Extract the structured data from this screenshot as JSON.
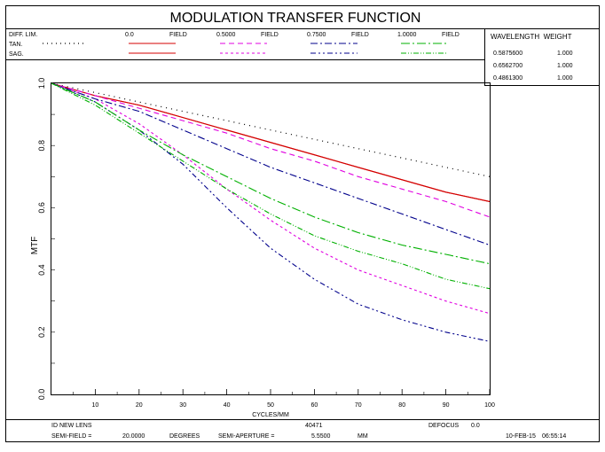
{
  "chart_data": {
    "type": "line",
    "title": "MODULATION TRANSFER FUNCTION",
    "xlabel": "CYCLES/MM",
    "ylabel": "MTF",
    "xlim": [
      0,
      100
    ],
    "ylim": [
      0,
      1.0
    ],
    "xticks": [
      10,
      20,
      30,
      40,
      50,
      60,
      70,
      80,
      90,
      100
    ],
    "yticks": [
      "0.0",
      "0.2",
      "0.4",
      "0.6",
      "0.8",
      "1.0"
    ],
    "x": [
      0,
      10,
      20,
      30,
      40,
      50,
      60,
      70,
      80,
      90,
      100
    ],
    "diff_lim": {
      "label": "DIFF. LIM.",
      "values": [
        1.0,
        0.97,
        0.94,
        0.91,
        0.88,
        0.85,
        0.82,
        0.79,
        0.76,
        0.73,
        0.7
      ]
    },
    "row_labels": [
      "TAN.",
      "SAG."
    ],
    "fields": [
      {
        "value": "0.0",
        "word": "FIELD",
        "color": "#d40000",
        "tan": [
          1.0,
          0.96,
          0.93,
          0.89,
          0.85,
          0.81,
          0.77,
          0.73,
          0.69,
          0.65,
          0.62
        ],
        "sag": [
          1.0,
          0.96,
          0.93,
          0.89,
          0.85,
          0.81,
          0.77,
          0.73,
          0.69,
          0.65,
          0.62
        ]
      },
      {
        "value": "0.5000",
        "word": "FIELD",
        "color": "#e000e0",
        "tan": [
          1.0,
          0.96,
          0.92,
          0.88,
          0.84,
          0.79,
          0.75,
          0.7,
          0.66,
          0.62,
          0.57
        ],
        "sag": [
          1.0,
          0.95,
          0.87,
          0.77,
          0.66,
          0.56,
          0.47,
          0.4,
          0.35,
          0.3,
          0.26
        ]
      },
      {
        "value": "0.7500",
        "word": "FIELD",
        "color": "#00008b",
        "tan": [
          1.0,
          0.95,
          0.91,
          0.85,
          0.79,
          0.73,
          0.68,
          0.63,
          0.58,
          0.53,
          0.48
        ],
        "sag": [
          1.0,
          0.94,
          0.85,
          0.74,
          0.6,
          0.47,
          0.37,
          0.29,
          0.24,
          0.2,
          0.17
        ]
      },
      {
        "value": "1.0000",
        "word": "FIELD",
        "color": "#00b000",
        "tan": [
          1.0,
          0.94,
          0.85,
          0.77,
          0.7,
          0.63,
          0.57,
          0.52,
          0.48,
          0.45,
          0.42
        ],
        "sag": [
          1.0,
          0.93,
          0.84,
          0.75,
          0.66,
          0.58,
          0.51,
          0.46,
          0.42,
          0.37,
          0.34
        ]
      }
    ],
    "wavelengths": {
      "header": "WAVELENGTH  WEIGHT",
      "rows": [
        {
          "wavelength": "0.5875600",
          "weight": "1.000"
        },
        {
          "wavelength": "0.6562700",
          "weight": "1.000"
        },
        {
          "wavelength": "0.4861300",
          "weight": "1.000"
        }
      ]
    },
    "grid": true
  },
  "footer": {
    "lens_name": "ID NEW LENS",
    "code": "40471",
    "defocus_label": "DEFOCUS",
    "defocus_value": "0.0",
    "semi_field_label": "SEMI-FIELD =",
    "semi_field_value": "20.0000",
    "semi_field_unit": "DEGREES",
    "semi_aperture_label": "SEMI-APERTURE =",
    "semi_aperture_value": "5.5500",
    "semi_aperture_unit": "MM",
    "date": "10-FEB-15",
    "time": "06:55:14"
  }
}
